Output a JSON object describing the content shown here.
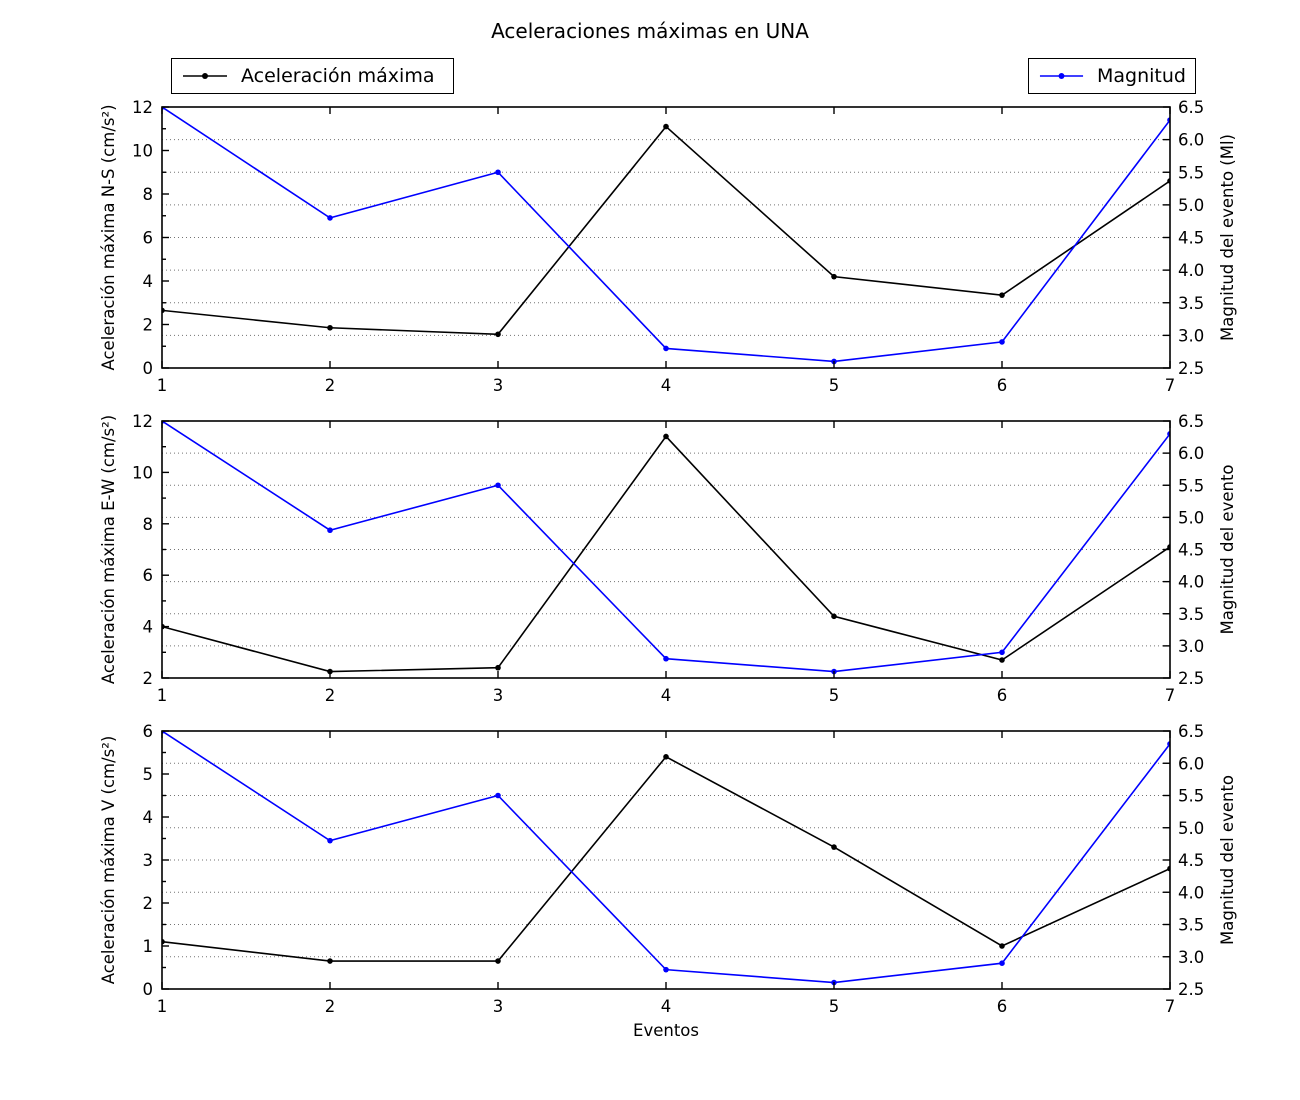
{
  "figure": {
    "title": "Aceleraciones máximas en UNA",
    "background_color": "#ffffff",
    "text_color": "#000000",
    "legends": [
      {
        "label": "Aceleración máxima",
        "series": "acceleration",
        "color": "#000000",
        "marker": "dot"
      },
      {
        "label": "Magnitud",
        "series": "magnitude",
        "color": "#0000ff",
        "marker": "dot"
      }
    ]
  },
  "chart_data": [
    {
      "type": "line",
      "component": "N-S",
      "x": [
        1,
        2,
        3,
        4,
        5,
        6,
        7
      ],
      "xlim": [
        1,
        7
      ],
      "xticks": [
        1,
        2,
        3,
        4,
        5,
        6,
        7
      ],
      "xtick_labels": [
        "1",
        "2",
        "3",
        "4",
        "5",
        "6",
        "7"
      ],
      "xlabel": "",
      "grid": "horizontal dotted lines at right-axis ticks",
      "left_axis": {
        "label": "Aceleración máxima N-S (cm/s²)",
        "lim": [
          0,
          12
        ],
        "ticks": [
          0,
          2,
          4,
          6,
          8,
          10,
          12
        ],
        "tick_labels": [
          "0",
          "2",
          "4",
          "6",
          "8",
          "10",
          "12"
        ]
      },
      "right_axis": {
        "label": "Magnitud del evento (Ml)",
        "lim": [
          2.5,
          6.5
        ],
        "ticks": [
          2.5,
          3,
          3.5,
          4,
          4.5,
          5,
          5.5,
          6,
          6.5
        ],
        "tick_labels": [
          "2.5",
          "3.0",
          "3.5",
          "4.0",
          "4.5",
          "5.0",
          "5.5",
          "6.0",
          "6.5"
        ]
      },
      "series": [
        {
          "name": "Aceleración máxima",
          "axis": "left",
          "color": "#000000",
          "marker": "dot",
          "values": [
            2.65,
            1.85,
            1.55,
            11.1,
            4.2,
            3.35,
            8.6
          ]
        },
        {
          "name": "Magnitud",
          "axis": "right",
          "color": "#0000ff",
          "marker": "dot",
          "values": [
            6.5,
            4.8,
            5.5,
            2.8,
            2.6,
            2.9,
            6.3
          ]
        }
      ]
    },
    {
      "type": "line",
      "component": "E-W",
      "x": [
        1,
        2,
        3,
        4,
        5,
        6,
        7
      ],
      "xlim": [
        1,
        7
      ],
      "xticks": [
        1,
        2,
        3,
        4,
        5,
        6,
        7
      ],
      "xtick_labels": [
        "1",
        "2",
        "3",
        "4",
        "5",
        "6",
        "7"
      ],
      "xlabel": "",
      "grid": "horizontal dotted lines at right-axis ticks",
      "left_axis": {
        "label": "Aceleración máxima E-W (cm/s²)",
        "lim": [
          2,
          12
        ],
        "ticks": [
          2,
          4,
          6,
          8,
          10,
          12
        ],
        "tick_labels": [
          "2",
          "4",
          "6",
          "8",
          "10",
          "12"
        ]
      },
      "right_axis": {
        "label": "Magnitud del evento",
        "lim": [
          2.5,
          6.5
        ],
        "ticks": [
          2.5,
          3,
          3.5,
          4,
          4.5,
          5,
          5.5,
          6,
          6.5
        ],
        "tick_labels": [
          "2.5",
          "3.0",
          "3.5",
          "4.0",
          "4.5",
          "5.0",
          "5.5",
          "6.0",
          "6.5"
        ]
      },
      "series": [
        {
          "name": "Aceleración máxima",
          "axis": "left",
          "color": "#000000",
          "marker": "dot",
          "values": [
            4.0,
            2.25,
            2.4,
            11.4,
            4.4,
            2.7,
            7.1
          ]
        },
        {
          "name": "Magnitud",
          "axis": "right",
          "color": "#0000ff",
          "marker": "dot",
          "values": [
            6.5,
            4.8,
            5.5,
            2.8,
            2.6,
            2.9,
            6.3
          ]
        }
      ]
    },
    {
      "type": "line",
      "component": "V",
      "x": [
        1,
        2,
        3,
        4,
        5,
        6,
        7
      ],
      "xlim": [
        1,
        7
      ],
      "xticks": [
        1,
        2,
        3,
        4,
        5,
        6,
        7
      ],
      "xtick_labels": [
        "1",
        "2",
        "3",
        "4",
        "5",
        "6",
        "7"
      ],
      "xlabel": "Eventos",
      "grid": "horizontal dotted lines at right-axis ticks",
      "left_axis": {
        "label": "Aceleración máxima V (cm/s²)",
        "lim": [
          0,
          6
        ],
        "ticks": [
          0,
          1,
          2,
          3,
          4,
          5,
          6
        ],
        "tick_labels": [
          "0",
          "1",
          "2",
          "3",
          "4",
          "5",
          "6"
        ]
      },
      "right_axis": {
        "label": "Magnitud del evento",
        "lim": [
          2.5,
          6.5
        ],
        "ticks": [
          2.5,
          3,
          3.5,
          4,
          4.5,
          5,
          5.5,
          6,
          6.5
        ],
        "tick_labels": [
          "2.5",
          "3.0",
          "3.5",
          "4.0",
          "4.5",
          "5.0",
          "5.5",
          "6.0",
          "6.5"
        ]
      },
      "series": [
        {
          "name": "Aceleración máxima",
          "axis": "left",
          "color": "#000000",
          "marker": "dot",
          "values": [
            1.1,
            0.65,
            0.65,
            5.4,
            3.3,
            1.0,
            2.8
          ]
        },
        {
          "name": "Magnitud",
          "axis": "right",
          "color": "#0000ff",
          "marker": "dot",
          "values": [
            6.5,
            4.8,
            5.5,
            2.8,
            2.6,
            2.9,
            6.3
          ]
        }
      ]
    }
  ]
}
